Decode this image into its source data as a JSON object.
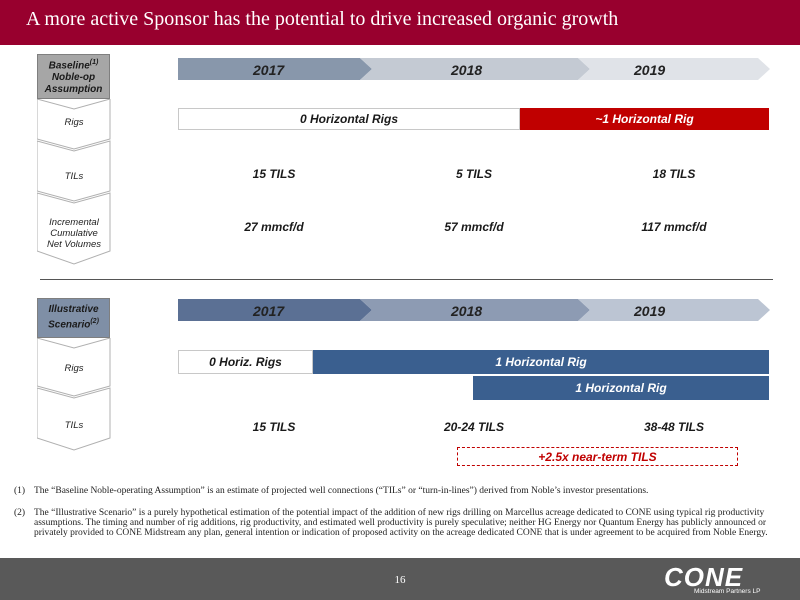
{
  "title": "A more active Sponsor has the potential to drive increased organic growth",
  "baseline": {
    "header_main": "Baseline",
    "header_sup": "(1)",
    "header_rest": "Noble-op Assumption",
    "rows": [
      "Rigs",
      "TILs",
      "Incremental Cumulative Net Volumes"
    ],
    "years": [
      "2017",
      "2018",
      "2019"
    ],
    "rigs_bar_1": "0 Horizontal Rigs",
    "rigs_bar_2": "~1 Horizontal Rig",
    "tils": [
      "15 TILS",
      "5 TILS",
      "18 TILS"
    ],
    "volumes": [
      "27 mmcf/d",
      "57 mmcf/d",
      "117 mmcf/d"
    ]
  },
  "illustrative": {
    "header_main": "Illustrative Scenario",
    "header_sup": "(2)",
    "rows": [
      "Rigs",
      "TILs"
    ],
    "years": [
      "2017",
      "2018",
      "2019"
    ],
    "rigs_bar_1": "0 Horiz. Rigs",
    "rigs_bar_2": "1 Horizontal Rig",
    "rigs_bar_3": "1 Horizontal Rig",
    "tils": [
      "15 TILS",
      "20-24 TILS",
      "38-48 TILS"
    ],
    "callout": "+2.5x near-term TILS"
  },
  "footnotes": [
    {
      "num": "(1)",
      "text": "The “Baseline Noble-operating Assumption” is an estimate of projected well connections (“TILs” or “turn-in-lines”) derived from Noble’s investor presentations."
    },
    {
      "num": "(2)",
      "text": "The “Illustrative Scenario” is a purely hypothetical estimation of the potential impact of the addition of new rigs drilling on Marcellus acreage dedicated to CONE using typical rig productivity assumptions.  The timing and number of rig additions, rig productivity, and estimated well productivity is purely speculative; neither HG Energy nor Quantum Energy has publicly announced or privately provided to CONE Midstream any plan, general intention or indication of proposed activity on the acreage dedicated CONE that is under agreement to be acquired from Noble Energy."
    }
  ],
  "page_number": "16",
  "logo": {
    "word": "CONE",
    "sub": "Midstream Partners LP"
  },
  "colors": {
    "title_bar": "#98002e",
    "red_bar": "#c00000",
    "blue_bar": "#3a5f8f",
    "footer": "#595959"
  }
}
